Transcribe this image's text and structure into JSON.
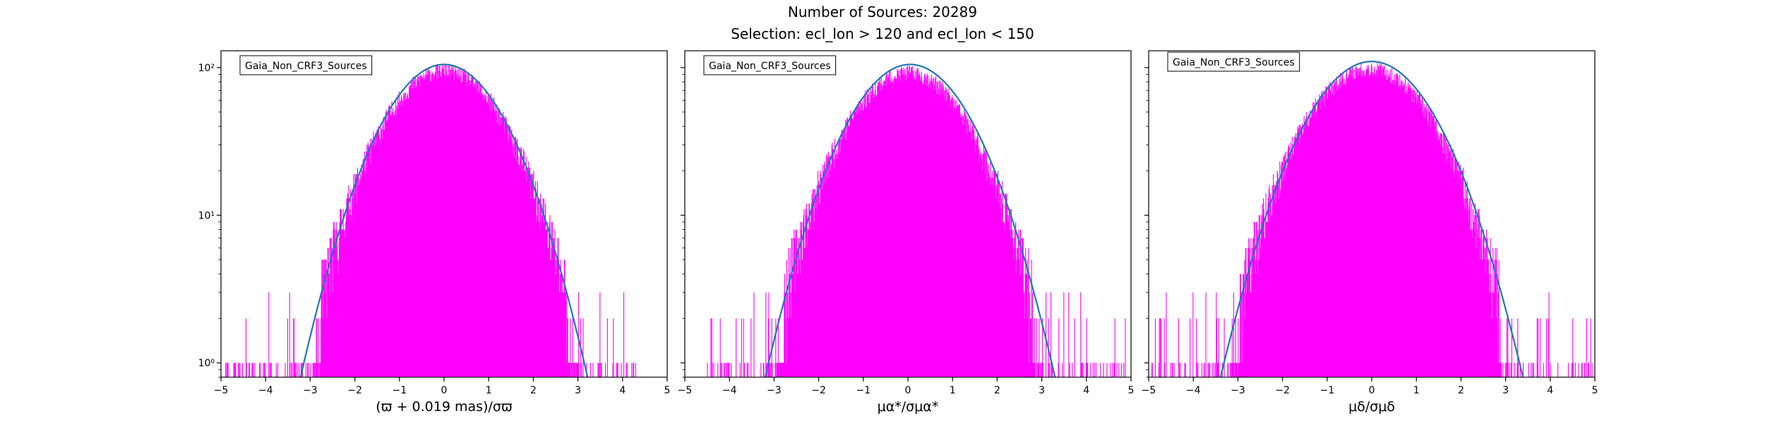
{
  "figure": {
    "title_line1": "Number of Sources: 20289",
    "title_line2": "Selection: ecl_lon > 120 and ecl_lon < 150"
  },
  "colors": {
    "histogram": "#ff00ff",
    "fit_curve": "#1f77b4",
    "axes": "#000000"
  },
  "chart_data": [
    {
      "type": "histogram",
      "xlabel": "(ϖ + 0.019 mas)/σϖ",
      "ylabel": "",
      "yscale": "log",
      "xlim": [
        -5,
        5
      ],
      "ylim": [
        0.8,
        130
      ],
      "xticks": [
        "−5",
        "−4",
        "−3",
        "−2",
        "−1",
        "0",
        "1",
        "2",
        "3",
        "4",
        "5"
      ],
      "yticks": [
        {
          "value": 1,
          "label": "10⁰"
        },
        {
          "value": 10,
          "label": "10¹"
        },
        {
          "value": 100,
          "label": "10²"
        }
      ],
      "legend": {
        "label": "Gaia_Non_CRF3_Sources",
        "position": "top-left"
      },
      "fit_curve": {
        "type": "gaussian",
        "peak": 105,
        "mean": 0.0,
        "sigma": 1.03
      },
      "histogram": {
        "peak": 95,
        "mean": 0.0,
        "sigma": 1.05,
        "range": [
          -5,
          5
        ],
        "tail_limits": [
          -4.9,
          4.3
        ],
        "seed": 11
      }
    },
    {
      "type": "histogram",
      "xlabel": "μα*/σμα*",
      "ylabel": "",
      "yscale": "log",
      "xlim": [
        -5,
        5
      ],
      "ylim": [
        0.8,
        130
      ],
      "xticks": [
        "−5",
        "−4",
        "−3",
        "−2",
        "−1",
        "0",
        "1",
        "2",
        "3",
        "4",
        "5"
      ],
      "yticks": [
        {
          "value": 1,
          "label": "10⁰"
        },
        {
          "value": 10,
          "label": "10¹"
        },
        {
          "value": 100,
          "label": "10²"
        }
      ],
      "legend": {
        "label": "Gaia_Non_CRF3_Sources",
        "position": "top-left"
      },
      "fit_curve": {
        "type": "gaussian",
        "peak": 105,
        "mean": 0.05,
        "sigma": 1.04
      },
      "histogram": {
        "peak": 92,
        "mean": 0.0,
        "sigma": 1.06,
        "range": [
          -5,
          5
        ],
        "tail_limits": [
          -4.5,
          4.9
        ],
        "seed": 23
      }
    },
    {
      "type": "histogram",
      "xlabel": "μδ/σμδ",
      "ylabel": "",
      "yscale": "log",
      "xlim": [
        -5,
        5
      ],
      "ylim": [
        0.8,
        130
      ],
      "xticks": [
        "−5",
        "−4",
        "−3",
        "−2",
        "−1",
        "0",
        "1",
        "2",
        "3",
        "4",
        "5"
      ],
      "yticks": [
        {
          "value": 1,
          "label": "10⁰"
        },
        {
          "value": 10,
          "label": "10¹"
        },
        {
          "value": 100,
          "label": "10²"
        }
      ],
      "legend": {
        "label": "Gaia_Non_CRF3_Sources",
        "position": "top-left"
      },
      "fit_curve": {
        "type": "gaussian",
        "peak": 110,
        "mean": 0.0,
        "sigma": 1.08
      },
      "histogram": {
        "peak": 98,
        "mean": -0.05,
        "sigma": 1.1,
        "range": [
          -5,
          5
        ],
        "tail_limits": [
          -4.95,
          4.95
        ],
        "seed": 37
      }
    }
  ]
}
